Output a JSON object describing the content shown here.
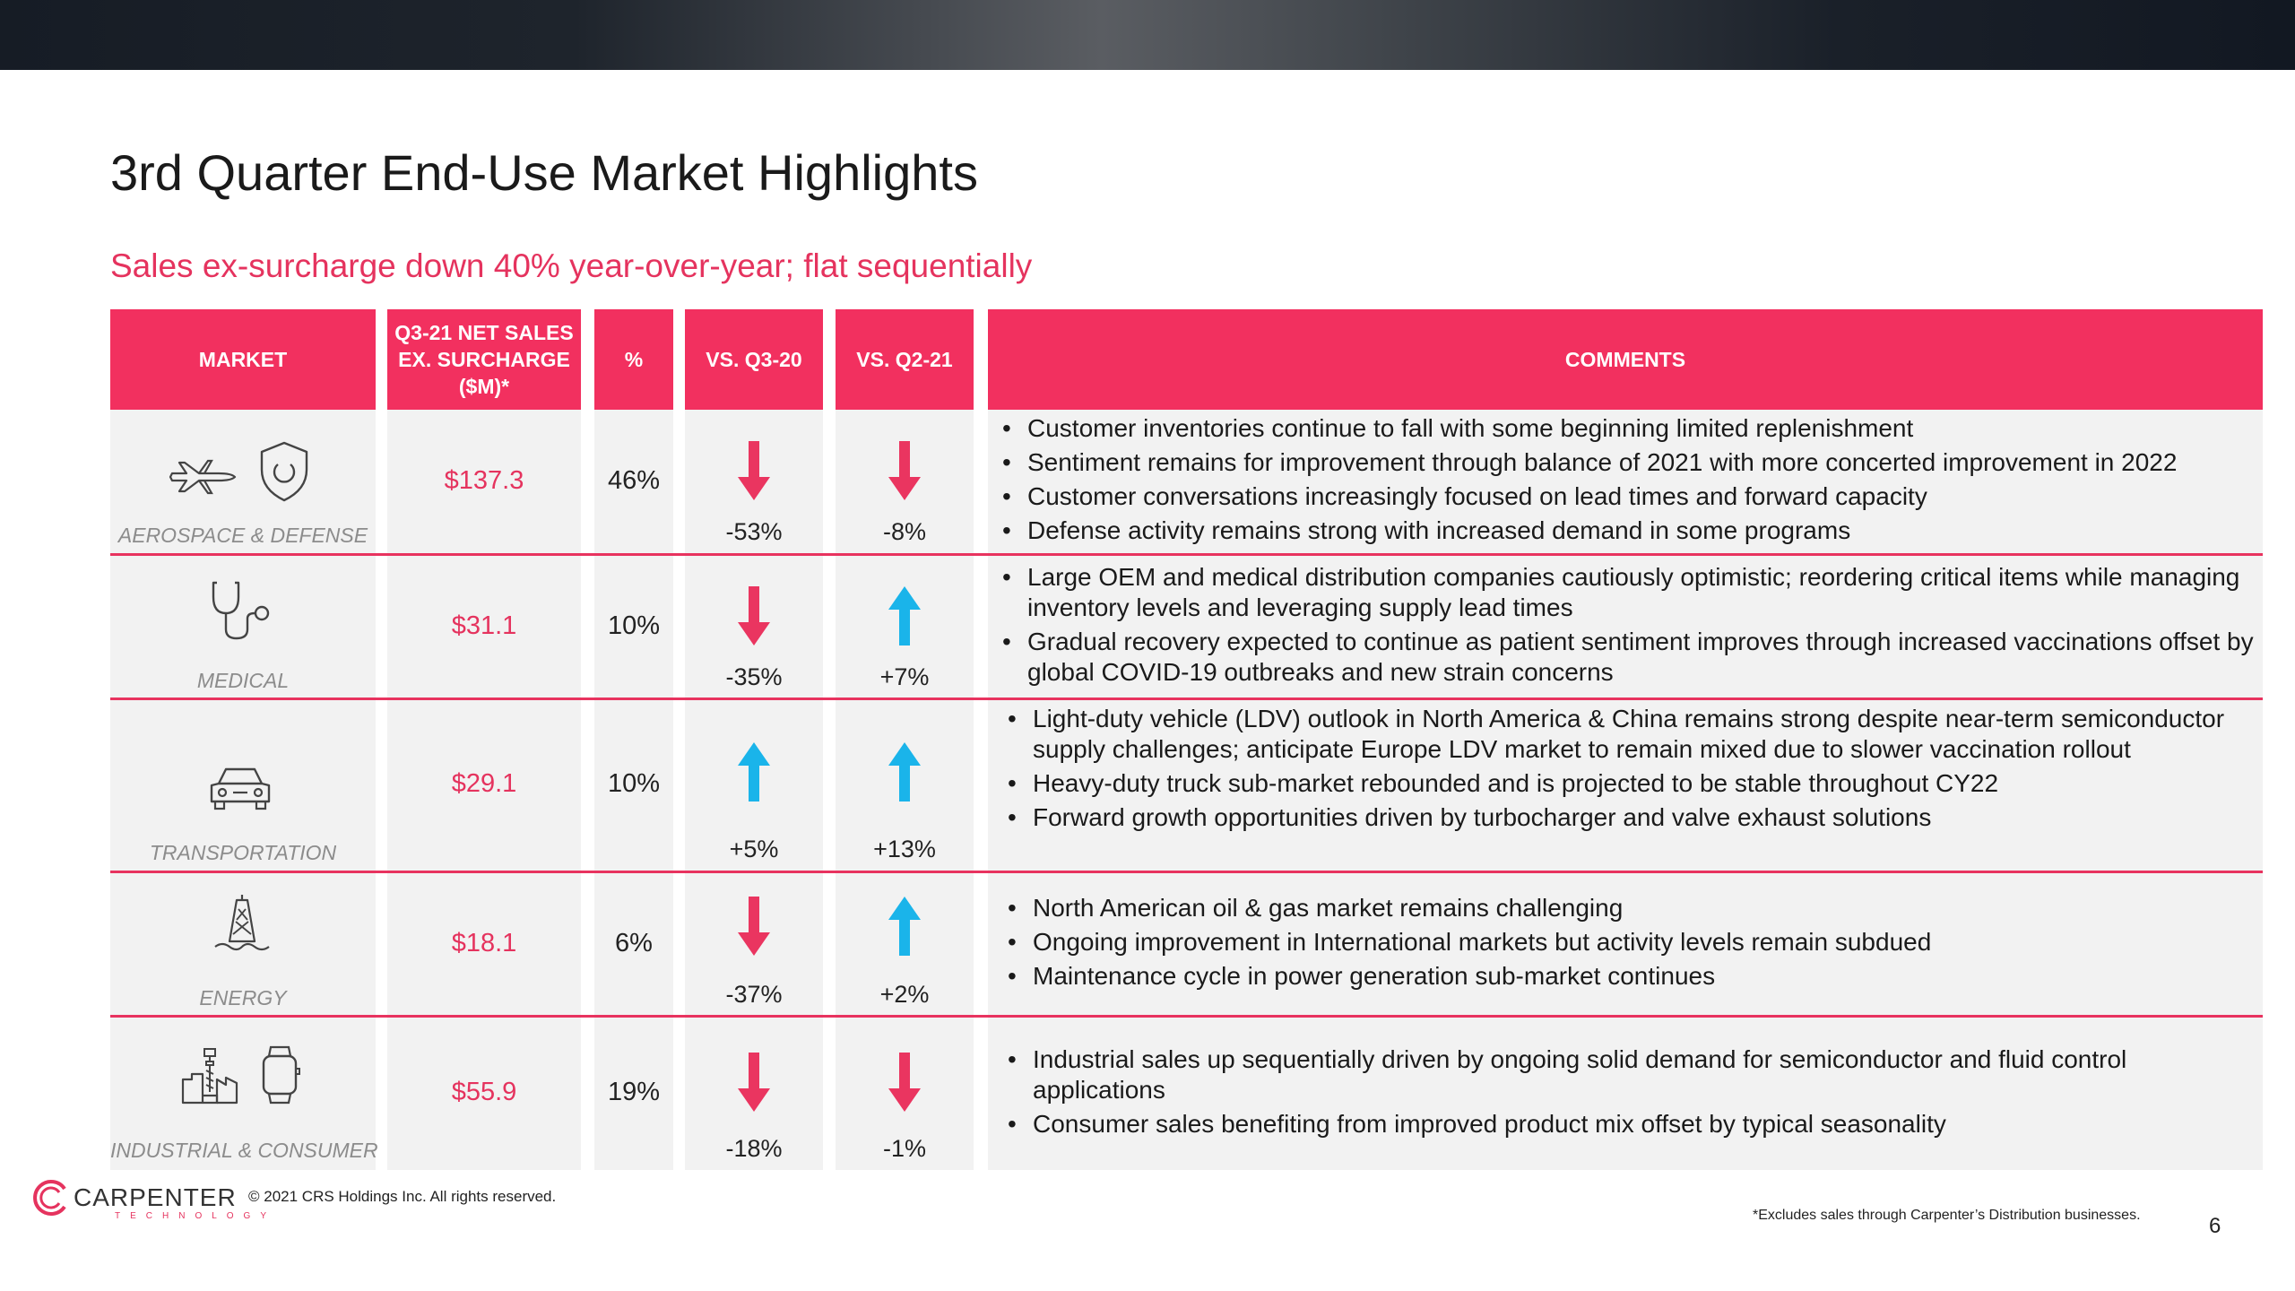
{
  "title": "3rd Quarter End-Use Market Highlights",
  "subtitle": "Sales ex-surcharge down 40% year-over-year; flat sequentially",
  "headers": {
    "market": "MARKET",
    "sales_line1": "Q3-21 NET SALES",
    "sales_line2": "EX. SURCHARGE",
    "sales_line3": "($M)*",
    "pct": "%",
    "vs_q3": "VS. Q3-20",
    "vs_q2": "VS. Q2-21",
    "comments": "COMMENTS"
  },
  "colors": {
    "accent": "#f2305f",
    "up_arrow": "#1ab4ea",
    "down_arrow": "#ea3560",
    "row_bg": "#f2f2f2"
  },
  "rows": [
    {
      "market": "AEROSPACE & DEFENSE",
      "icons": [
        "airplane-icon",
        "shield-icon"
      ],
      "sales": "$137.3",
      "pct": "46%",
      "vs_q3": "-53%",
      "vs_q3_dir": "down",
      "vs_q2": "-8%",
      "vs_q2_dir": "down",
      "comments": [
        "Customer inventories continue to fall with some beginning limited replenishment",
        "Sentiment remains for improvement through balance of 2021 with more concerted improvement in 2022",
        "Customer conversations increasingly focused on lead times and forward capacity",
        "Defense activity remains strong with increased demand in some programs"
      ]
    },
    {
      "market": "MEDICAL",
      "icons": [
        "stethoscope-icon"
      ],
      "sales": "$31.1",
      "pct": "10%",
      "vs_q3": "-35%",
      "vs_q3_dir": "down",
      "vs_q2": "+7%",
      "vs_q2_dir": "up",
      "comments": [
        "Large OEM and medical distribution companies cautiously optimistic; reordering critical items while managing inventory levels and leveraging supply lead times",
        "Gradual recovery expected to continue as patient sentiment improves through increased vaccinations offset by global COVID-19 outbreaks and new strain concerns"
      ]
    },
    {
      "market": "TRANSPORTATION",
      "icons": [
        "car-icon"
      ],
      "sales": "$29.1",
      "pct": "10%",
      "vs_q3": "+5%",
      "vs_q3_dir": "up",
      "vs_q2": "+13%",
      "vs_q2_dir": "up",
      "comments": [
        "Light-duty vehicle (LDV) outlook in North America & China remains strong despite near-term semiconductor supply challenges; anticipate Europe LDV market to remain mixed due to slower vaccination rollout",
        "Heavy-duty truck sub-market rebounded and is projected to be stable throughout CY22",
        "Forward growth opportunities driven by turbocharger and valve exhaust solutions"
      ]
    },
    {
      "market": "ENERGY",
      "icons": [
        "oil-rig-icon"
      ],
      "sales": "$18.1",
      "pct": "6%",
      "vs_q3": "-37%",
      "vs_q3_dir": "down",
      "vs_q2": "+2%",
      "vs_q2_dir": "up",
      "comments": [
        "North American oil & gas market remains challenging",
        "Ongoing improvement in International markets but activity levels remain subdued",
        "Maintenance cycle in power generation sub-market continues"
      ]
    },
    {
      "market": "INDUSTRIAL & CONSUMER",
      "icons": [
        "factory-drill-icon",
        "smartwatch-icon"
      ],
      "sales": "$55.9",
      "pct": "19%",
      "vs_q3": "-18%",
      "vs_q3_dir": "down",
      "vs_q2": "-1%",
      "vs_q2_dir": "down",
      "comments": [
        "Industrial sales up sequentially driven by ongoing solid demand for semiconductor and fluid control applications",
        "Consumer sales benefiting from improved product mix offset by typical seasonality"
      ]
    }
  ],
  "footer": {
    "logo_name": "CARPENTER",
    "logo_sub": "TECHNOLOGY",
    "copyright": "© 2021 CRS Holdings Inc. All rights reserved.",
    "footnote": "*Excludes sales through Carpenter’s Distribution businesses.",
    "page_number": "6"
  }
}
